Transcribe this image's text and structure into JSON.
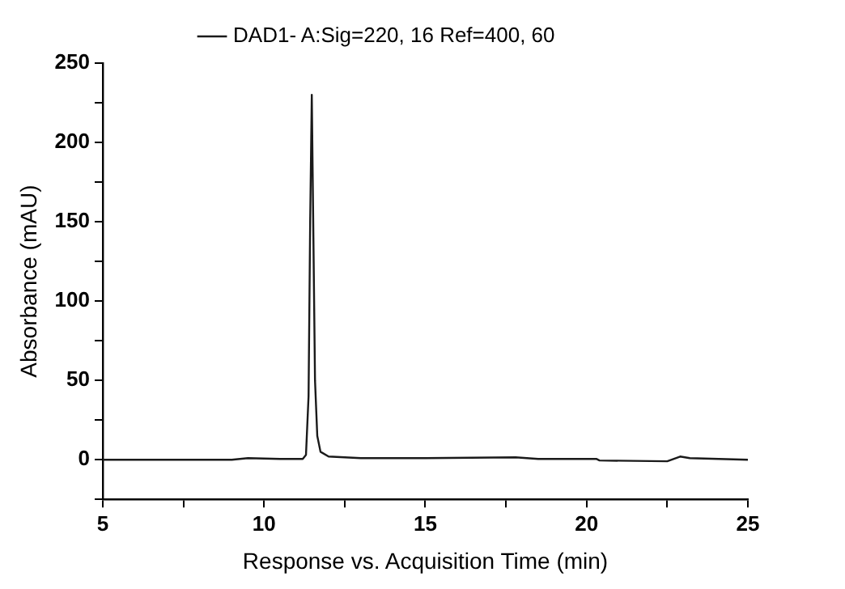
{
  "chart_data": {
    "type": "line",
    "xlabel": "Response vs. Acquisition Time (min)",
    "ylabel": "Absorbance (mAU)",
    "x": [
      5,
      7,
      9,
      9.5,
      10.5,
      11.2,
      11.3,
      11.38,
      11.43,
      11.48,
      11.53,
      11.58,
      11.65,
      11.75,
      12,
      13,
      15,
      17.8,
      18.5,
      20.3,
      20.4,
      22.5,
      22.9,
      23.2,
      25
    ],
    "series": [
      {
        "name": "DAD1- A:Sig=220, 16 Ref=400, 60",
        "color": "#1a1a1a",
        "values": [
          0,
          0,
          0,
          1,
          0.5,
          0.5,
          3,
          40,
          150,
          230,
          140,
          50,
          15,
          5,
          2,
          1,
          1,
          1.5,
          0.5,
          0.5,
          -0.5,
          -1,
          2,
          1,
          0
        ]
      }
    ],
    "xlim": [
      5,
      25
    ],
    "xticks": [
      5,
      {
        "value": 7.5,
        "label": null
      },
      10,
      {
        "value": 12.5,
        "label": null
      },
      15,
      {
        "value": 17.5,
        "label": null
      },
      20,
      {
        "value": 22.5,
        "label": null
      },
      25
    ],
    "ylim": [
      -25,
      250
    ],
    "yticks": [
      {
        "value": -25,
        "label": null
      },
      0,
      {
        "value": 25,
        "label": null
      },
      50,
      {
        "value": 75,
        "label": null
      },
      100,
      {
        "value": 125,
        "label": null
      },
      150,
      {
        "value": 175,
        "label": null
      },
      200,
      {
        "value": 225,
        "label": null
      },
      250
    ],
    "grid": false,
    "legend": "top",
    "marker": "none",
    "line_style": "solid"
  }
}
